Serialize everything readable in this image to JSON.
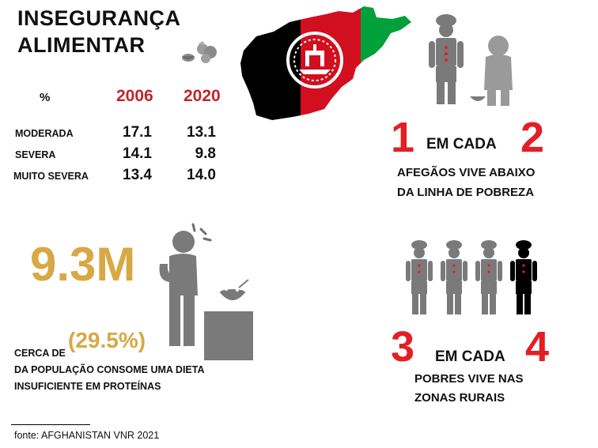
{
  "title": {
    "line1": "INSEGURANÇA",
    "line2": "ALIMENTAR"
  },
  "table": {
    "unit_header": "%",
    "years": [
      "2006",
      "2020"
    ],
    "rows": [
      {
        "label": "MODERADA",
        "v2006": "17.1",
        "v2020": "13.1"
      },
      {
        "label": "SEVERA",
        "v2006": "14.1",
        "v2020": "9.8"
      },
      {
        "label": "MUITO SEVERA",
        "v2006": "13.4",
        "v2020": "14.0"
      }
    ]
  },
  "poverty": {
    "num": "1",
    "mid": "EM CADA",
    "den": "2",
    "line1": "AFEGÃOS VIVE ABAIXO",
    "line2": "DA LINHA DE POBREZA"
  },
  "protein": {
    "big": "9.3M",
    "prefix": "CERCA DE",
    "pct": "(29.5%)",
    "line1": "DA POPULAÇÃO CONSOME UMA DIETA",
    "line2": "INSUFICIENTE EM PROTEÍNAS"
  },
  "rural": {
    "num": "3",
    "mid": "EM CADA",
    "den": "4",
    "line1": "POBRES VIVE NAS",
    "line2": "ZONAS RURAIS"
  },
  "source": "fonte: AFGHANISTAN VNR 2021",
  "colors": {
    "accent_red": "#e31e24",
    "year_red": "#c0262c",
    "gold": "#d7a844",
    "icon_gray": "#7a7a7a",
    "flag_black": "#000000",
    "flag_red": "#d20f1f",
    "flag_green": "#00a03a"
  },
  "chart_data": {
    "type": "table",
    "title": "INSEGURANÇA ALIMENTAR",
    "unit": "%",
    "columns": [
      "2006",
      "2020"
    ],
    "rows": [
      {
        "category": "MODERADA",
        "values": [
          17.1,
          13.1
        ]
      },
      {
        "category": "SEVERA",
        "values": [
          14.1,
          9.8
        ]
      },
      {
        "category": "MUITO SEVERA",
        "values": [
          13.4,
          14.0
        ]
      }
    ]
  }
}
